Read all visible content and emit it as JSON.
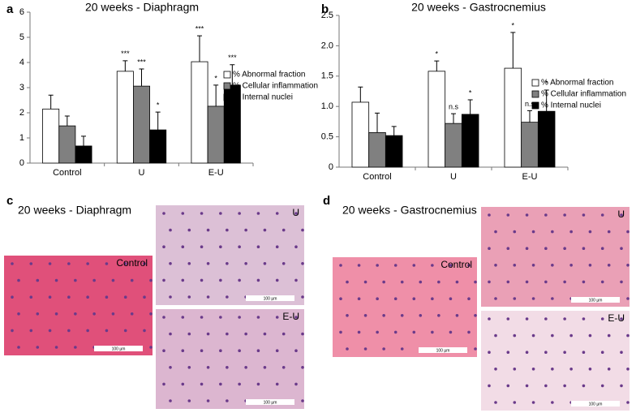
{
  "chart_data": [
    {
      "type": "bar",
      "panel": "a",
      "title": "20 weeks - Diaphragm",
      "categories": [
        "Control",
        "U",
        "E-U"
      ],
      "ylim": [
        0,
        6
      ],
      "yticks": [
        0,
        1,
        2,
        3,
        4,
        5,
        6
      ],
      "series": [
        {
          "name": "% Abnormal fraction",
          "color": "#ffffff",
          "values": [
            2.15,
            3.65,
            4.03
          ],
          "errors": [
            0.55,
            0.42,
            1.03
          ],
          "annotations": [
            null,
            "***",
            "***"
          ]
        },
        {
          "name": "% Cellular inflammation",
          "color": "#808080",
          "values": [
            1.48,
            3.06,
            2.26
          ],
          "errors": [
            0.39,
            0.68,
            0.84
          ],
          "annotations": [
            null,
            "***",
            "*"
          ]
        },
        {
          "name": "% Internal nuclei",
          "color": "#000000",
          "values": [
            0.68,
            1.32,
            3.1
          ],
          "errors": [
            0.39,
            0.71,
            0.81
          ],
          "annotations": [
            null,
            "*",
            "***"
          ]
        }
      ]
    },
    {
      "type": "bar",
      "panel": "b",
      "title": "20 weeks - Gastrocnemius",
      "categories": [
        "Control",
        "U",
        "E-U"
      ],
      "ylim": [
        0,
        2.5
      ],
      "yticks": [
        0,
        0.5,
        {
          "value": 1,
          "label": "1.0"
        },
        1.5,
        {
          "value": 2,
          "label": "2.0"
        },
        2.5
      ],
      "series": [
        {
          "name": "% Abnormal fraction",
          "color": "#ffffff",
          "values": [
            1.07,
            1.58,
            1.63
          ],
          "errors": [
            0.25,
            0.17,
            0.59
          ],
          "annotations": [
            null,
            "*",
            "*"
          ]
        },
        {
          "name": "% Cellular inflammation",
          "color": "#808080",
          "values": [
            0.57,
            0.72,
            0.74
          ],
          "errors": [
            0.32,
            0.16,
            0.19
          ],
          "annotations": [
            null,
            "n.s",
            "n.s"
          ]
        },
        {
          "name": "% Internal nuclei",
          "color": "#000000",
          "values": [
            0.52,
            0.87,
            0.92
          ],
          "errors": [
            0.15,
            0.24,
            0.35
          ],
          "annotations": [
            null,
            "*",
            "*"
          ]
        }
      ]
    }
  ],
  "histology": [
    {
      "panel": "c",
      "title": "20 weeks - Diaphragm",
      "images": [
        {
          "label": "Control",
          "scale": "100 µm"
        },
        {
          "label": "U",
          "scale": "100 µm"
        },
        {
          "label": "E-U",
          "scale": "100 µm"
        }
      ]
    },
    {
      "panel": "d",
      "title": "20 weeks - Gastrocnemius",
      "images": [
        {
          "label": "Control",
          "scale": "100 µm"
        },
        {
          "label": "U",
          "scale": "100 µm"
        },
        {
          "label": "E-U",
          "scale": "100 µm"
        }
      ]
    }
  ]
}
